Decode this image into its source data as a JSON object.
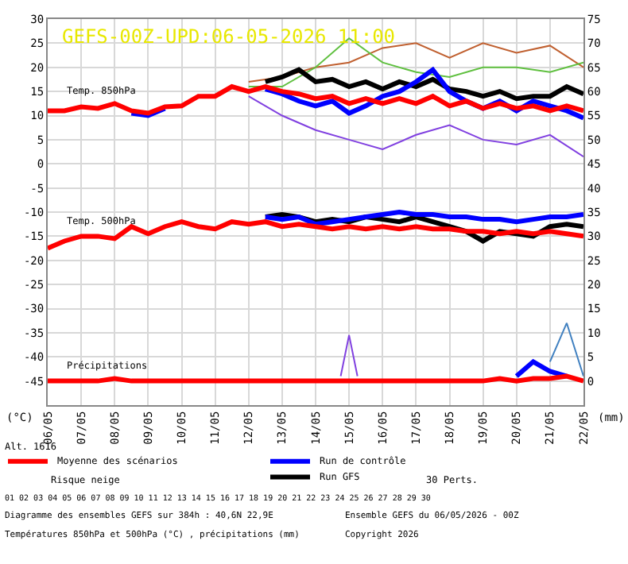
{
  "chart_data": {
    "type": "line",
    "title": "GEFS-00Z-UPD:06-05-2026 11:00",
    "ylabel": "(°C)",
    "y2label": "(mm)",
    "x": [
      "2026-05-06T00:00",
      "2026-05-06T12:00",
      "2026-05-07T00:00",
      "2026-05-07T12:00",
      "2026-05-08T00:00",
      "2026-05-08T12:00",
      "2026-05-09T00:00",
      "2026-05-09T12:00",
      "2026-05-10T00:00",
      "2026-05-10T12:00",
      "2026-05-11T00:00",
      "2026-05-11T12:00",
      "2026-05-12T00:00",
      "2026-05-12T12:00",
      "2026-05-13T00:00",
      "2026-05-13T12:00",
      "2026-05-14T00:00",
      "2026-05-14T12:00",
      "2026-05-15T00:00",
      "2026-05-15T12:00",
      "2026-05-16T00:00",
      "2026-05-16T12:00",
      "2026-05-17T00:00",
      "2026-05-17T12:00",
      "2026-05-18T00:00",
      "2026-05-18T12:00",
      "2026-05-19T00:00",
      "2026-05-19T12:00",
      "2026-05-20T00:00",
      "2026-05-20T12:00",
      "2026-05-21T00:00",
      "2026-05-21T12:00",
      "2026-05-22T00:00"
    ],
    "series": [
      {
        "color": "#c06030",
        "x": [
          "2026-05-12",
          "2026-05-13",
          "2026-05-14",
          "2026-05-15",
          "2026-05-16",
          "2026-05-17",
          "2026-05-18",
          "2026-05-19",
          "2026-05-20",
          "2026-05-21",
          "2026-05-22"
        ],
        "values": [
          17,
          18,
          20,
          21,
          24,
          25,
          22,
          25,
          23,
          24.5,
          20
        ]
      },
      {
        "color": "#60c040",
        "x": [
          "2026-05-12",
          "2026-05-13",
          "2026-05-14",
          "2026-05-15",
          "2026-05-16",
          "2026-05-17",
          "2026-05-18",
          "2026-05-19",
          "2026-05-20",
          "2026-05-21",
          "2026-05-22"
        ],
        "values": [
          16,
          16,
          20,
          26,
          21,
          19,
          18,
          20,
          20,
          19,
          21
        ]
      },
      {
        "color": "#8040e0",
        "x": [
          "2026-05-12",
          "2026-05-13",
          "2026-05-14",
          "2026-05-15",
          "2026-05-16",
          "2026-05-17",
          "2026-05-18",
          "2026-05-19",
          "2026-05-20",
          "2026-05-21",
          "2026-05-22"
        ],
        "values": [
          14,
          10,
          7,
          5,
          3,
          6,
          8,
          5,
          4,
          6,
          1.5
        ]
      },
      {
        "color": "#8040e0",
        "axis": "y2",
        "x": [
          "2026-05-14T18:00",
          "2026-05-15T00:00",
          "2026-05-15T06:00"
        ],
        "values": [
          1,
          9.5,
          1
        ]
      },
      {
        "color": "#4080c0",
        "axis": "y2",
        "x": [
          "2026-05-21T00:00",
          "2026-05-21T12:00",
          "2026-05-22T00:00"
        ],
        "values": [
          4,
          12,
          1
        ]
      },
      {
        "name": "Run GFS",
        "color": "#000000",
        "values": [
          null,
          null,
          null,
          null,
          null,
          null,
          null,
          null,
          null,
          null,
          null,
          null,
          null,
          17,
          18,
          19.5,
          17,
          17.5,
          16,
          17,
          15.5,
          17,
          16,
          17.5,
          15.5,
          15,
          14,
          15,
          13.5,
          14,
          14,
          16,
          14.5
        ]
      },
      {
        "name": "Run de contrôle",
        "color": "#0000ff",
        "values": [
          null,
          null,
          null,
          null,
          null,
          10.5,
          10,
          11.5,
          null,
          null,
          null,
          null,
          null,
          15.5,
          14.5,
          13,
          12,
          13,
          10.5,
          12,
          14,
          15,
          17,
          19.5,
          15,
          13,
          11.5,
          13,
          11,
          13,
          12,
          11,
          9.5
        ]
      },
      {
        "name": "Moyenne des scénarios",
        "color": "#ff0000",
        "values": [
          11,
          11,
          11.8,
          11.5,
          12.5,
          11,
          10.5,
          11.8,
          12,
          14,
          14,
          16,
          15,
          16,
          15,
          14.5,
          13.5,
          14,
          12.5,
          13.5,
          12.5,
          13.5,
          12.5,
          14,
          12,
          13,
          11.5,
          12.5,
          11.5,
          12,
          11,
          12,
          11
        ]
      },
      {
        "color": "#000000",
        "values": [
          null,
          null,
          null,
          null,
          null,
          null,
          null,
          null,
          null,
          null,
          null,
          null,
          null,
          -11,
          -10.5,
          -11,
          -12,
          -11.5,
          -12,
          -11,
          -11.5,
          -12,
          -11,
          -12,
          -13,
          -14,
          -16,
          -14,
          -14.5,
          -15,
          -13,
          -12.5,
          -13
        ]
      },
      {
        "color": "#0000ff",
        "values": [
          null,
          null,
          null,
          null,
          null,
          null,
          null,
          null,
          null,
          null,
          null,
          null,
          null,
          -11,
          -11.5,
          -11,
          -12.5,
          -12,
          -11.5,
          -11,
          -10.5,
          -10,
          -10.5,
          -10.5,
          -11,
          -11,
          -11.5,
          -11.5,
          -12,
          -11.5,
          -11,
          -11,
          -10.5
        ]
      },
      {
        "color": "#ff0000",
        "values": [
          -17.5,
          -16,
          -15,
          -15,
          -15.5,
          -13,
          -14.5,
          -13,
          -12,
          -13,
          -13.5,
          -12,
          -12.5,
          -12,
          -13,
          -12.5,
          -13,
          -13.5,
          -13,
          -13.5,
          -13,
          -13.5,
          -13,
          -13.5,
          -13.5,
          -14,
          -14,
          -14.5,
          -14,
          -14.5,
          -14,
          -14.5,
          -15
        ]
      },
      {
        "color": "#0000ff",
        "axis": "y2",
        "values": [
          null,
          null,
          null,
          null,
          null,
          null,
          null,
          null,
          null,
          null,
          null,
          null,
          null,
          null,
          null,
          null,
          null,
          null,
          null,
          null,
          null,
          null,
          null,
          null,
          null,
          null,
          null,
          null,
          1,
          4,
          2,
          1,
          null
        ]
      },
      {
        "color": "#ff0000",
        "axis": "y2",
        "values": [
          0,
          0,
          0,
          0,
          0.5,
          0,
          0,
          0,
          0,
          0,
          0,
          0,
          0,
          0,
          0,
          0,
          0,
          0,
          0,
          0,
          0,
          0,
          0,
          0,
          0,
          0,
          0,
          0.5,
          0,
          0.5,
          0.5,
          1,
          0
        ]
      }
    ],
    "xlim": [
      "2026-05-06",
      "2026-05-22"
    ],
    "xticks": [
      {
        "value": "2026-05-06",
        "label": "06/05"
      },
      {
        "value": "2026-05-07",
        "label": "07/05"
      },
      {
        "value": "2026-05-08",
        "label": "08/05"
      },
      {
        "value": "2026-05-09",
        "label": "09/05"
      },
      {
        "value": "2026-05-10",
        "label": "10/05"
      },
      {
        "value": "2026-05-11",
        "label": "11/05"
      },
      {
        "value": "2026-05-12",
        "label": "12/05"
      },
      {
        "value": "2026-05-13",
        "label": "13/05"
      },
      {
        "value": "2026-05-14",
        "label": "14/05"
      },
      {
        "value": "2026-05-15",
        "label": "15/05"
      },
      {
        "value": "2026-05-16",
        "label": "16/05"
      },
      {
        "value": "2026-05-17",
        "label": "17/05"
      },
      {
        "value": "2026-05-18",
        "label": "18/05"
      },
      {
        "value": "2026-05-19",
        "label": "19/05"
      },
      {
        "value": "2026-05-20",
        "label": "20/05"
      },
      {
        "value": "2026-05-21",
        "label": "21/05"
      },
      {
        "value": "2026-05-22",
        "label": "22/05"
      }
    ],
    "ylim": [
      -50,
      30
    ],
    "yticks": [
      -45,
      -40,
      -35,
      -30,
      -25,
      -20,
      -15,
      -10,
      -5,
      0,
      5,
      10,
      15,
      20,
      25,
      30
    ],
    "y2lim": [
      -5,
      75
    ],
    "y2ticks": [
      0,
      5,
      10,
      15,
      20,
      25,
      30,
      35,
      40,
      45,
      50,
      55,
      60,
      65,
      70,
      75
    ],
    "grid": true,
    "legend": "bottom",
    "annotations": [
      "Temp. 850hPa",
      "Temp. 500hPa",
      "Précipitations",
      "Alt. 1616",
      "Risque neige",
      "30 Perts.",
      "01 02 03 04 05 06 07 08 09 10 11 12 13 14 15 16 17 18 19 20 21 22 23 24 25 26 27 28 29 30",
      "Diagramme des ensembles GEFS sur 384h : 40,6N 22,9E",
      "Températures 850hPa et 500hPa (°C) , précipitations (mm)",
      "Ensemble GEFS du 06/05/2026 - 00Z",
      "Copyright 2026"
    ]
  }
}
